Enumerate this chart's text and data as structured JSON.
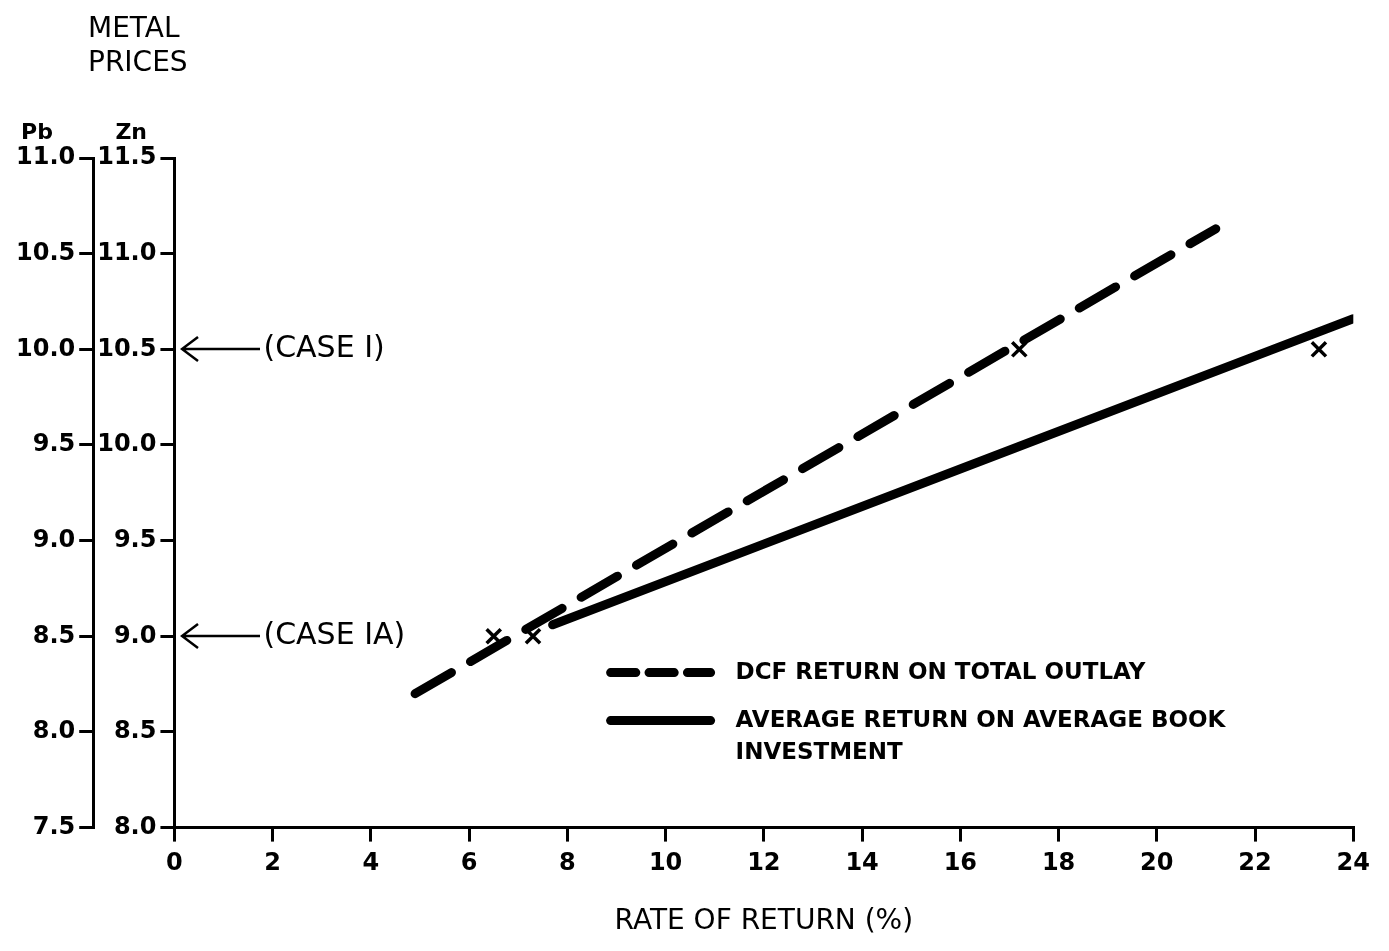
{
  "chart_data": {
    "type": "line",
    "title": "METAL PRICES",
    "xlabel": "RATE OF RETURN (%)",
    "ylabel": "Pb",
    "y2label": "Zn",
    "xlim": [
      0,
      24
    ],
    "xticks": [
      0,
      2,
      4,
      6,
      8,
      10,
      12,
      14,
      16,
      18,
      20,
      22,
      24
    ],
    "ylim": [
      7.5,
      11.0
    ],
    "yticks": [
      7.5,
      {
        "value": 8,
        "label": "8.0"
      },
      8.5,
      {
        "value": 9,
        "label": "9.0"
      },
      9.5,
      {
        "value": 10,
        "label": "10.0"
      },
      10.5,
      {
        "value": 11,
        "label": "11.0"
      }
    ],
    "y2lim": [
      8.0,
      11.5
    ],
    "y2ticks": [
      {
        "value": 8,
        "label": "8.0"
      },
      8.5,
      {
        "value": 9,
        "label": "9.0"
      },
      9.5,
      {
        "value": 10,
        "label": "10.0"
      },
      10.5,
      {
        "value": 11,
        "label": "11.0"
      },
      11.5
    ],
    "grid": false,
    "legend": "bottom right",
    "ref_lines": [
      {
        "axis": "y",
        "value": 10.0,
        "label": "(CASE I)"
      },
      {
        "axis": "y",
        "value": 8.5,
        "label": "(CASE IA)"
      }
    ],
    "series": [
      {
        "name": "DCF RETURN ON TOTAL OUTLAY",
        "color": "#000000",
        "line_style": "dashed",
        "marker": "none",
        "x": [
          4.9,
          21.2
        ],
        "values": [
          8.2,
          10.63
        ]
      },
      {
        "name": "AVERAGE RETURN ON AVERAGE BOOK INVESTMENT",
        "color": "#000000",
        "line_style": "solid",
        "marker": "none",
        "x": [
          7.7,
          24
        ],
        "values": [
          8.56,
          10.16
        ]
      },
      {
        "type": "scatter",
        "color": "#000000",
        "marker": "cross",
        "x": [
          6.5,
          7.3,
          17.2,
          23.3
        ],
        "values": [
          8.5,
          8.5,
          10.0,
          10.0
        ]
      }
    ]
  }
}
